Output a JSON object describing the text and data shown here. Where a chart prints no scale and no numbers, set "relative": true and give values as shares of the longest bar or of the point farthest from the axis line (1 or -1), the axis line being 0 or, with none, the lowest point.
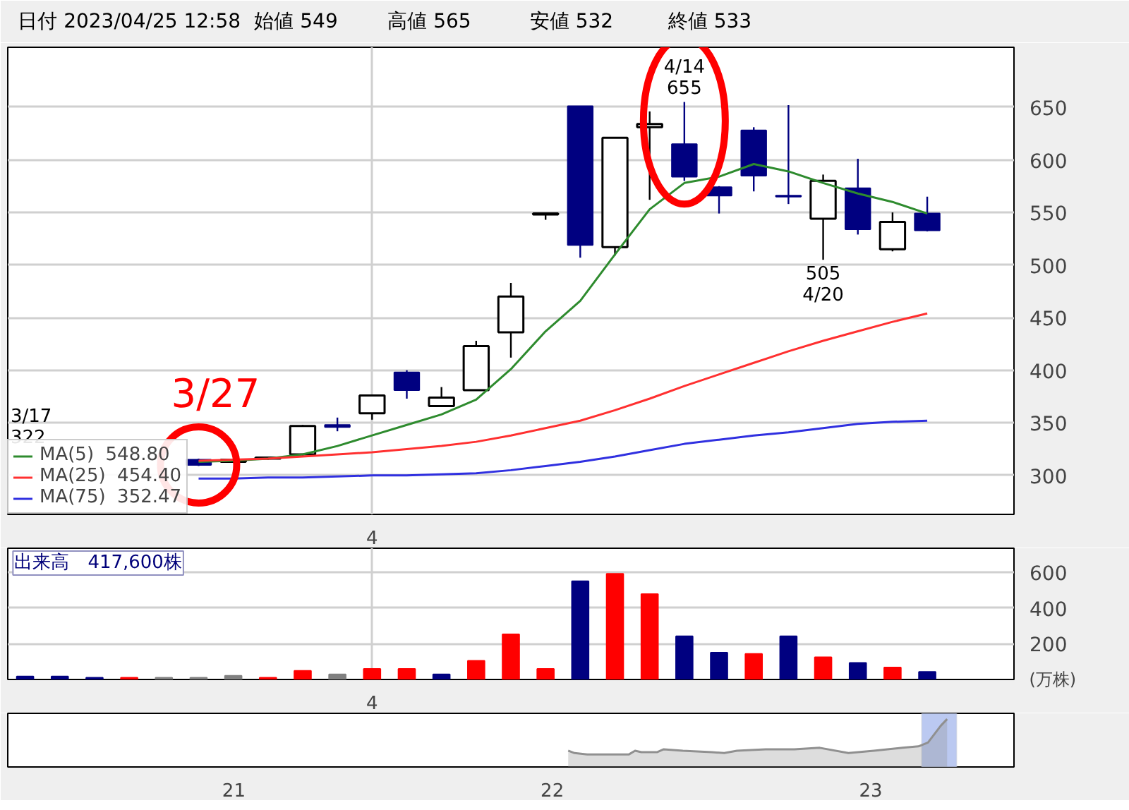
{
  "chart_data": [
    {
      "type": "candlestick",
      "colors": [
        null,
        null,
        null,
        null,
        "#000080",
        "#000080",
        "#ffffff",
        "#ffffff",
        "#ffffff",
        "#000080",
        "#ffffff",
        "#000080",
        "#ffffff",
        "#ffffff",
        "#ffffff",
        "#ffffff",
        "#000080",
        "#ffffff",
        "#ffffff",
        "#000080",
        "#000080",
        "#000080",
        "#000080",
        "#ffffff",
        "#000080",
        "#ffffff",
        "#000080",
        null,
        null
      ],
      "categories": [
        null,
        null,
        null,
        null,
        null,
        null,
        null,
        null,
        null,
        null,
        "4",
        null,
        null,
        null,
        null,
        null,
        null,
        null,
        null,
        null,
        null,
        null,
        null,
        null,
        null,
        null,
        null,
        null,
        null
      ],
      "ohlc": [
        null,
        null,
        null,
        null,
        null,
        [
          315,
          316,
          309,
          310
        ],
        [
          313,
          316,
          312,
          315
        ],
        [
          316,
          318,
          315,
          317
        ],
        [
          320,
          348,
          319,
          347
        ],
        [
          348,
          355,
          342,
          346
        ],
        [
          359,
          376,
          353,
          376
        ],
        [
          398,
          400,
          373,
          381
        ],
        [
          366,
          384,
          366,
          374
        ],
        [
          381,
          428,
          381,
          423
        ],
        [
          436,
          483,
          412,
          470
        ],
        [
          548,
          550,
          543,
          549
        ],
        [
          651,
          651,
          507,
          519
        ],
        [
          517,
          621,
          509,
          621
        ],
        [
          631,
          646,
          562,
          634
        ],
        [
          615,
          655,
          580,
          584
        ],
        [
          574,
          575,
          549,
          566
        ],
        [
          628,
          631,
          570,
          585
        ],
        [
          566,
          652,
          558,
          565
        ],
        [
          544,
          586,
          505,
          580
        ],
        [
          573,
          601,
          529,
          534
        ],
        [
          515,
          550,
          513,
          541
        ],
        [
          549,
          565,
          532,
          533
        ],
        null,
        null
      ],
      "series": [
        {
          "type": "line",
          "name": "MA(5)  548.80",
          "color": "#2e8b2e",
          "values": [
            null,
            null,
            null,
            null,
            null,
            313,
            314,
            316,
            320,
            328,
            338,
            348,
            358,
            372,
            401,
            437,
            466,
            510,
            553,
            578,
            584,
            596,
            589,
            578,
            568,
            560,
            549,
            null,
            null
          ]
        },
        {
          "type": "line",
          "name": "MA(25)  454.40",
          "color": "#ff3030",
          "values": [
            null,
            null,
            null,
            null,
            null,
            314,
            315,
            316,
            318,
            320,
            322,
            325,
            328,
            332,
            338,
            345,
            352,
            362,
            373,
            385,
            396,
            407,
            418,
            428,
            437,
            446,
            454,
            null,
            null
          ]
        },
        {
          "type": "line",
          "name": "MA(75)  352.47",
          "color": "#3030e0",
          "values": [
            null,
            null,
            null,
            null,
            null,
            297,
            297,
            298,
            298,
            299,
            300,
            300,
            301,
            302,
            305,
            309,
            313,
            318,
            324,
            330,
            334,
            338,
            341,
            345,
            349,
            351,
            352,
            null,
            null
          ]
        }
      ],
      "ylim": [
        263,
        707
      ],
      "yticks": [
        300,
        350,
        400,
        450,
        500,
        550,
        600,
        650
      ],
      "grid": true,
      "legend": "bottom left",
      "annotations": [
        "日付 2023/04/25 12:58",
        "始値 549",
        "高値 565",
        "安値 532",
        "終値 533",
        "3/17\n322",
        {
          "text": "3/27",
          "y": 310
        },
        {
          "text": "4/14\n655",
          "y": 655
        },
        {
          "text": "505\n4/20",
          "y": 505
        }
      ]
    },
    {
      "type": "bar",
      "title": "出来高　417,600株",
      "ylabel": "(万株)",
      "categories": [
        null,
        null,
        null,
        null,
        null,
        null,
        null,
        null,
        null,
        null,
        "4",
        null,
        null,
        null,
        null,
        null,
        null,
        null,
        null,
        null,
        null,
        null,
        null,
        null,
        null,
        null,
        null,
        null,
        null
      ],
      "values": [
        17,
        17,
        10,
        10,
        10,
        10,
        21,
        10,
        48,
        29,
        59,
        59,
        29,
        105,
        253,
        59,
        550,
        592,
        478,
        242,
        150,
        143,
        242,
        124,
        93,
        67,
        42,
        null,
        null
      ],
      "colors": [
        "#000080",
        "#000080",
        "#000080",
        "#ff0000",
        "#808080",
        "#808080",
        "#808080",
        "#ff0000",
        "#ff0000",
        "#808080",
        "#ff0000",
        "#ff0000",
        "#000080",
        "#ff0000",
        "#ff0000",
        "#ff0000",
        "#000080",
        "#ff0000",
        "#ff0000",
        "#000080",
        "#000080",
        "#ff0000",
        "#000080",
        "#ff0000",
        "#000080",
        "#ff0000",
        "#000080",
        null,
        null
      ],
      "ylim": [
        0,
        735
      ],
      "yticks": [
        200,
        400,
        600
      ],
      "grid": true
    },
    {
      "type": "area",
      "relative": true,
      "color": "#909090",
      "x": [
        22.05,
        22.07,
        22.11,
        22.24,
        22.26,
        22.28,
        22.33,
        22.35,
        22.41,
        22.5,
        22.54,
        22.58,
        22.67,
        22.76,
        22.84,
        22.93,
        23.01,
        23.1,
        23.15,
        23.18,
        23.22,
        23.24
      ],
      "values": [
        0.34,
        0.29,
        0.26,
        0.26,
        0.34,
        0.31,
        0.31,
        0.37,
        0.34,
        0.31,
        0.29,
        0.34,
        0.37,
        0.37,
        0.4,
        0.29,
        0.34,
        0.4,
        0.43,
        0.51,
        0.86,
        1
      ],
      "xlim": [
        20.29,
        23.45
      ],
      "xticks": [
        21,
        22,
        23
      ],
      "tick_labels": "x",
      "bands": [
        {
          "axis": "x",
          "from": 23.16,
          "to": 23.27,
          "color": "#aabbee"
        }
      ]
    }
  ]
}
